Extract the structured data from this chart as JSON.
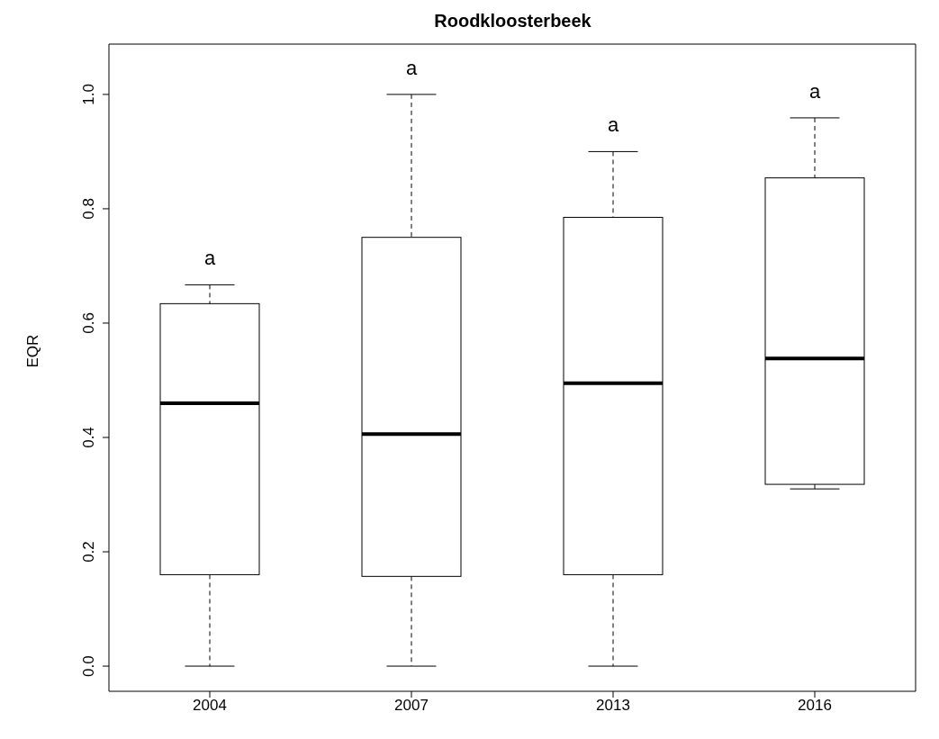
{
  "chart_data": {
    "type": "box",
    "title": "Roodkloosterbeek",
    "ylabel": "EQR",
    "categories": [
      "2004",
      "2007",
      "2013",
      "2016"
    ],
    "boxes": [
      {
        "low": 0,
        "q1": 0.16,
        "median": 0.46,
        "q3": 0.634,
        "high": 0.667
      },
      {
        "low": 0,
        "q1": 0.157,
        "median": 0.406,
        "q3": 0.75,
        "high": 1.0
      },
      {
        "low": 0,
        "q1": 0.16,
        "median": 0.495,
        "q3": 0.785,
        "high": 0.9
      },
      {
        "low": 0.31,
        "q1": 0.318,
        "median": 0.538,
        "q3": 0.854,
        "high": 0.959
      }
    ],
    "ylim": [
      -0.044,
      1.088
    ],
    "yticks": [
      {
        "value": 0,
        "label": "0.0"
      },
      {
        "value": 0.2,
        "label": "0.2"
      },
      {
        "value": 0.4,
        "label": "0.4"
      },
      {
        "value": 0.6,
        "label": "0.6"
      },
      {
        "value": 0.8,
        "label": "0.8"
      },
      {
        "value": 1,
        "label": "1.0"
      }
    ],
    "annotations": [
      "a",
      "a",
      "a",
      "a"
    ],
    "grid": false
  }
}
